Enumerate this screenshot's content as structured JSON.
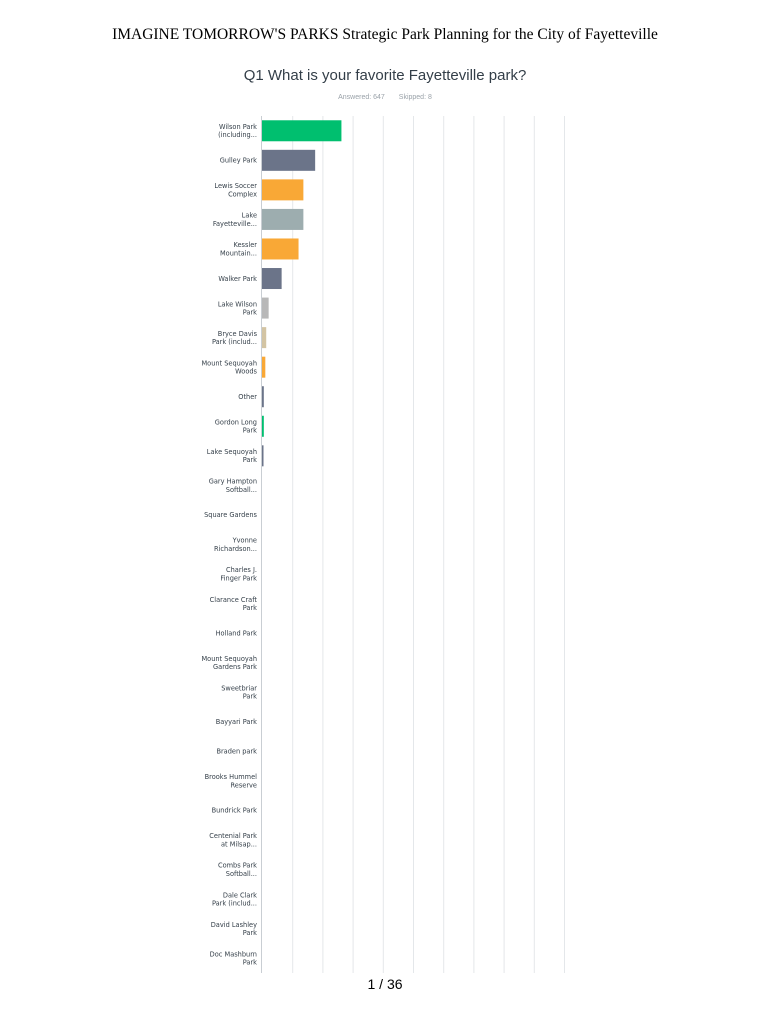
{
  "header": {
    "title": "IMAGINE TOMORROW'S PARKS Strategic Park Planning for the City of Fayetteville"
  },
  "question": {
    "title": "Q1 What is your favorite Fayetteville park?",
    "answered": "Answered: 647",
    "skipped": "Skipped: 8"
  },
  "chart_data": {
    "type": "bar",
    "orientation": "horizontal",
    "title": "Q1 What is your favorite Fayetteville park?",
    "xlim": [
      0,
      100
    ],
    "unit": "percent of respondents",
    "grid": true,
    "categories": [
      "Wilson Park (including...",
      "Gulley Park",
      "Lewis Soccer Complex",
      "Lake Fayetteville...",
      "Kessler Mountain...",
      "Walker Park",
      "Lake Wilson Park",
      "Bryce Davis Park (includ...",
      "Mount Sequoyah Woods",
      "Other",
      "Gordon Long Park",
      "Lake Sequoyah Park",
      "Gary Hampton Softball...",
      "Square Gardens",
      "Yvonne Richardson...",
      "Charles J. Finger Park",
      "Clarance Craft Park",
      "Holland Park",
      "Mount Sequoyah Gardens Park",
      "Sweetbriar Park",
      "Bayyari Park",
      "Braden park",
      "Brooks Hummel Reserve",
      "Bundrick Park",
      "Centenial Park at Milsap...",
      "Combs Park Softball...",
      "Dale Clark Park (includ...",
      "David Lashley Park",
      "Doc Mashburn Park"
    ],
    "values": [
      26.3,
      17.6,
      13.7,
      13.7,
      12.1,
      6.5,
      2.2,
      1.4,
      1.1,
      0.6,
      0.6,
      0.5,
      0,
      0,
      0,
      0,
      0,
      0,
      0,
      0,
      0,
      0,
      0,
      0,
      0,
      0,
      0,
      0,
      0
    ],
    "colors": [
      "#00bf6f",
      "#6b7489",
      "#f9a836",
      "#9dadaf",
      "#f9a836",
      "#6b7489",
      "#b8b8b8",
      "#d3c4a3",
      "#f9a836",
      "#6b7489",
      "#00bf6f",
      "#6b7489",
      "#00bf6f",
      "#00bf6f",
      "#00bf6f",
      "#00bf6f",
      "#00bf6f",
      "#00bf6f",
      "#00bf6f",
      "#00bf6f",
      "#00bf6f",
      "#00bf6f",
      "#00bf6f",
      "#00bf6f",
      "#00bf6f",
      "#00bf6f",
      "#00bf6f",
      "#00bf6f",
      "#00bf6f"
    ]
  },
  "footer": {
    "page": "1 / 36"
  }
}
